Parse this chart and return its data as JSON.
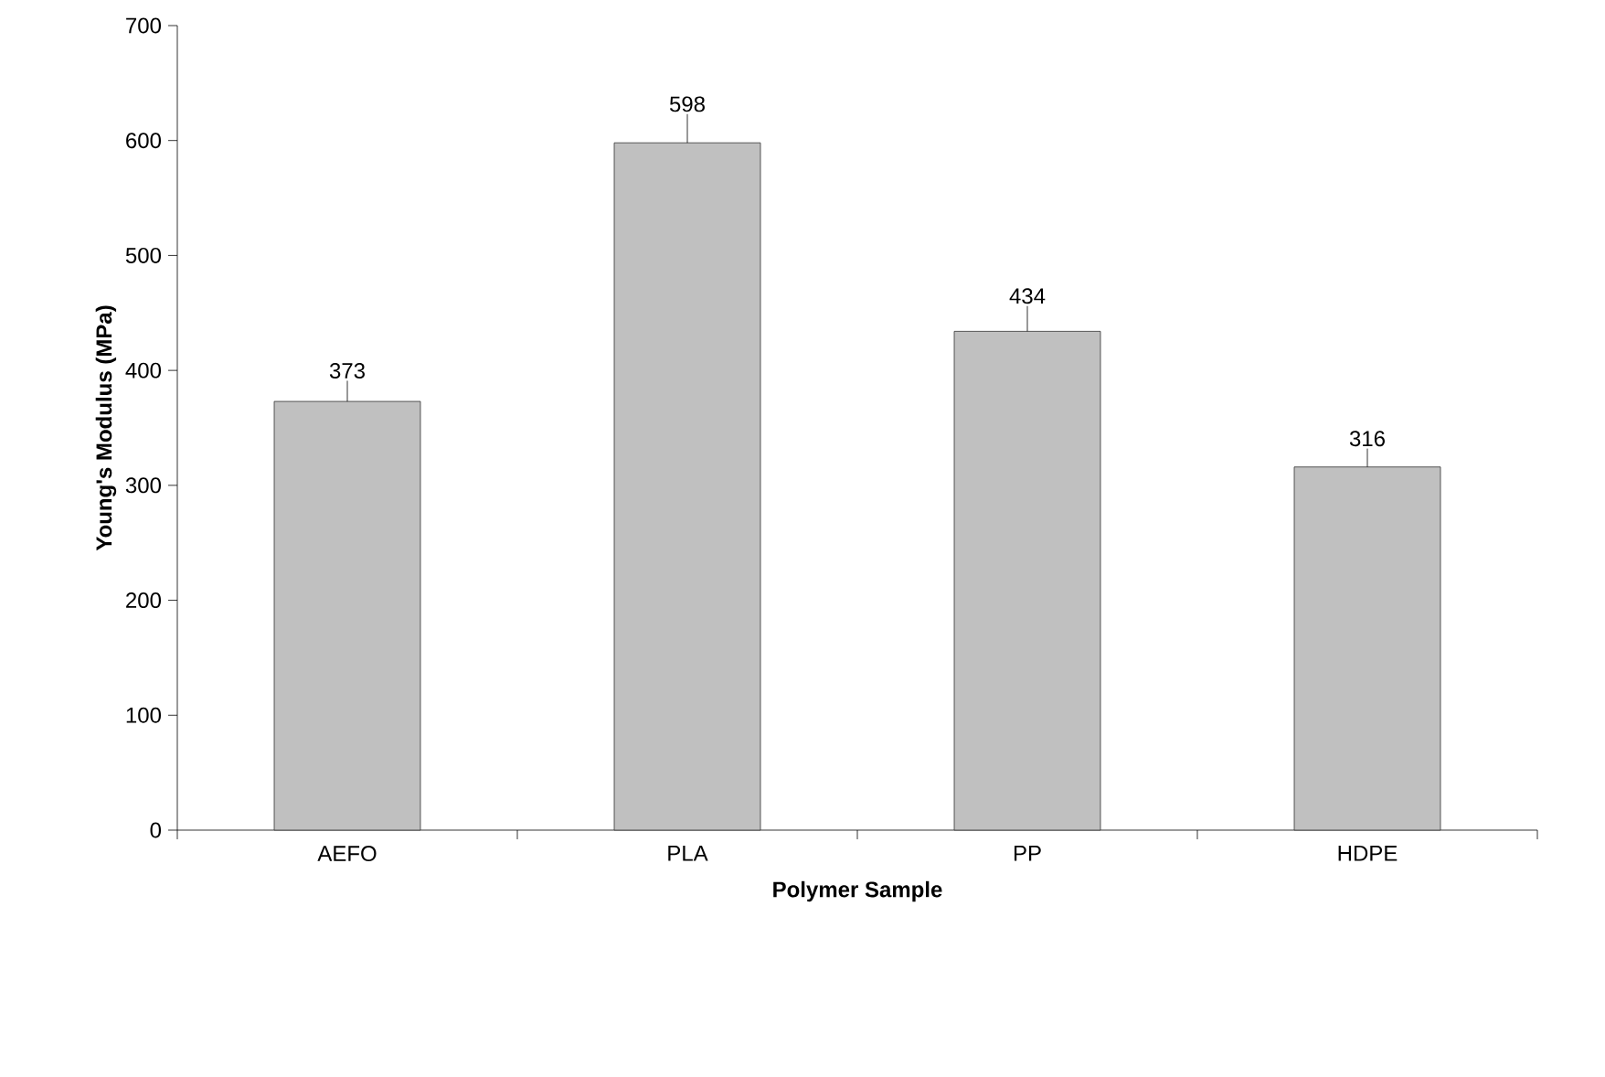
{
  "chart_data": {
    "type": "bar",
    "xlabel": "Polymer Sample",
    "ylabel": "Young's Modulus (MPa)",
    "categories": [
      "AEFO",
      "PLA",
      "PP",
      "HDPE"
    ],
    "values": [
      373,
      598,
      434,
      316
    ],
    "errors": [
      [
        373,
        391
      ],
      [
        598,
        623
      ],
      [
        434,
        456
      ],
      [
        316,
        332
      ]
    ],
    "color": "#c0c0c0",
    "ylim": [
      0,
      700
    ],
    "yticks": [
      0,
      100,
      200,
      300,
      400,
      500,
      600,
      700
    ],
    "data_labels": true,
    "grid": false
  }
}
